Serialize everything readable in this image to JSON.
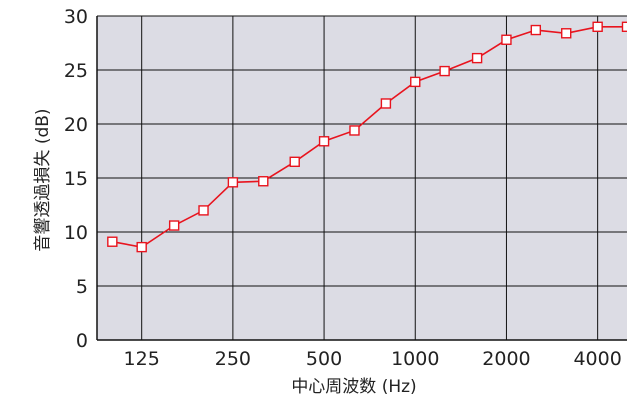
{
  "chart_data": {
    "type": "line",
    "title": "",
    "xlabel": "中心周波数 (Hz)",
    "ylabel": "音響透過損失 (dB)",
    "ylim": [
      0,
      30
    ],
    "yticks": [
      0,
      5,
      10,
      15,
      20,
      25,
      30
    ],
    "xscale": "log",
    "xlim_hz": [
      89,
      5000
    ],
    "xticks": [
      {
        "value": 125,
        "label": "125"
      },
      {
        "value": 250,
        "label": "250"
      },
      {
        "value": 500,
        "label": "500"
      },
      {
        "value": 1000,
        "label": "1000"
      },
      {
        "value": 2000,
        "label": "2000"
      },
      {
        "value": 4000,
        "label": "4000"
      }
    ],
    "grid": true,
    "background_color": "#dcdce4",
    "series": [
      {
        "color": "#e8141e",
        "marker": "square-open",
        "x": [
          100,
          125,
          160,
          200,
          250,
          315,
          400,
          500,
          630,
          800,
          1000,
          1250,
          1600,
          2000,
          2500,
          3150,
          4000,
          5000
        ],
        "values": [
          9.1,
          8.6,
          10.6,
          12.0,
          14.6,
          14.7,
          16.5,
          18.4,
          19.4,
          21.9,
          23.9,
          24.9,
          26.1,
          27.8,
          28.7,
          28.4,
          29.0,
          29.0
        ]
      }
    ]
  }
}
